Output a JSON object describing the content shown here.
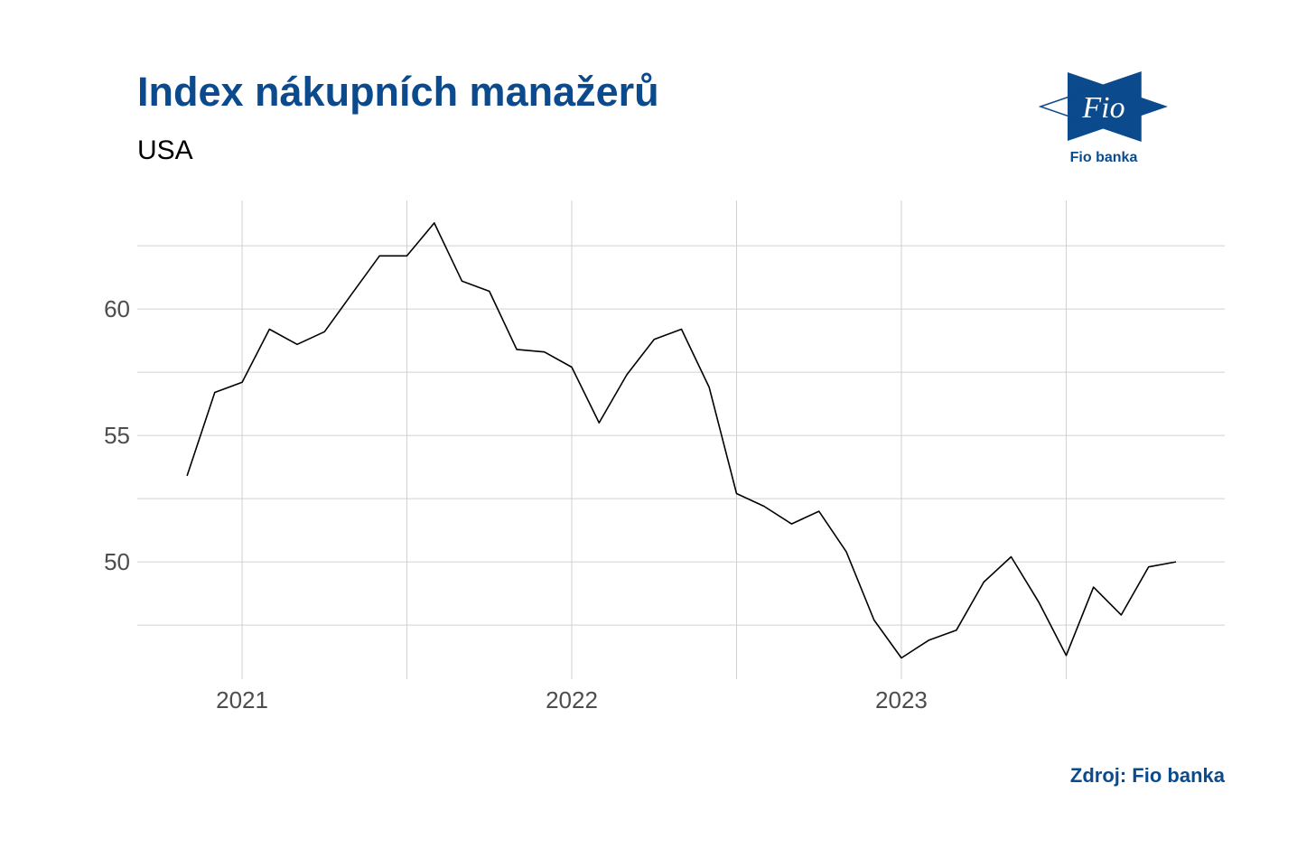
{
  "chart_data": {
    "type": "line",
    "title": "Index nákupních manažerů",
    "subtitle": "USA",
    "source": "Zdroj: Fio banka",
    "logo": {
      "mark": "Fio",
      "name": "Fio banka"
    },
    "x": [
      2020.833,
      2020.917,
      2021,
      2021.083,
      2021.167,
      2021.25,
      2021.333,
      2021.417,
      2021.5,
      2021.583,
      2021.667,
      2021.75,
      2021.833,
      2021.917,
      2022,
      2022.083,
      2022.167,
      2022.25,
      2022.333,
      2022.417,
      2022.5,
      2022.583,
      2022.667,
      2022.75,
      2022.833,
      2022.917,
      2023,
      2023.083,
      2023.167,
      2023.25,
      2023.333,
      2023.417,
      2023.5,
      2023.583,
      2023.667,
      2023.75,
      2023.833
    ],
    "series": [
      {
        "name": "USA",
        "color": "#000000",
        "values": [
          53.4,
          56.7,
          57.1,
          59.2,
          58.6,
          59.1,
          60.6,
          62.1,
          62.1,
          63.4,
          61.1,
          60.7,
          58.4,
          58.3,
          57.7,
          55.5,
          57.4,
          58.8,
          59.2,
          56.9,
          52.7,
          52.2,
          51.5,
          52.0,
          50.4,
          47.7,
          46.2,
          46.9,
          47.3,
          49.2,
          50.2,
          48.4,
          46.3,
          49.0,
          47.9,
          49.8,
          50.0
        ]
      }
    ],
    "xlim": [
      2020.682,
      2023.981
    ],
    "xticks": [
      2021,
      2022,
      2023
    ],
    "x_minor_grid": [
      2021.5,
      2022.5,
      2023.5
    ],
    "ylim": [
      45.36,
      64.29
    ],
    "yticks": [
      50,
      55,
      60
    ],
    "y_minor_grid": [
      47.5,
      52.5,
      57.5,
      62.5
    ],
    "grid": true,
    "title_color": "#0b4a8c",
    "grid_color": "#d0d0d0"
  }
}
